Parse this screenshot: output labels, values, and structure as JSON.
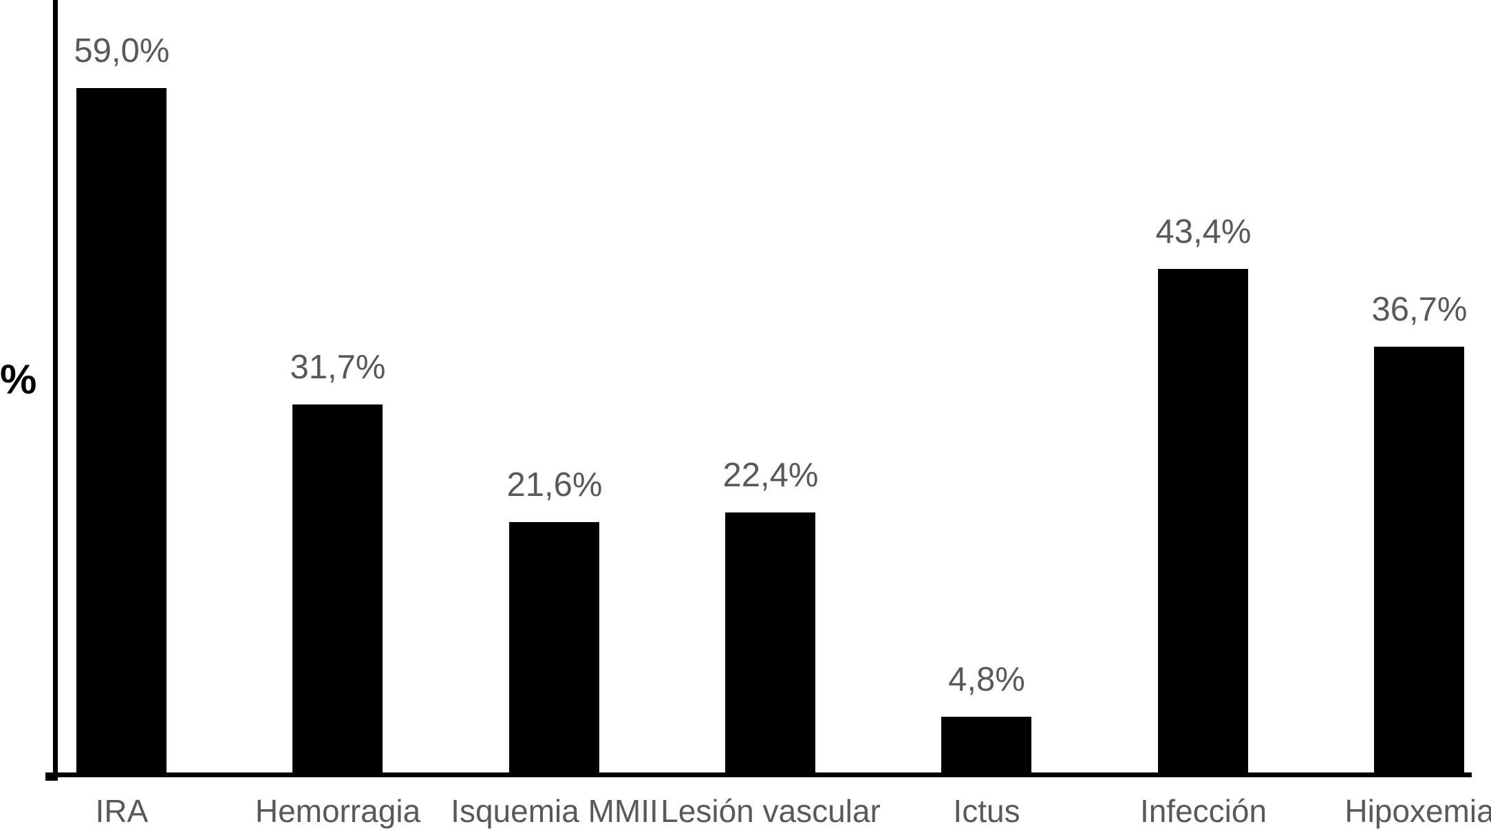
{
  "chart_data": {
    "type": "bar",
    "title": "",
    "ylabel": "%",
    "xlabel": "",
    "categories": [
      "IRA",
      "Hemorragia",
      "Isquemia MMII",
      "Lesión vascular",
      "Ictus",
      "Infección",
      "Hipoxemia"
    ],
    "values": [
      59.0,
      31.7,
      21.6,
      22.4,
      4.8,
      43.4,
      36.7
    ],
    "value_labels": [
      "59,0%",
      "31,7%",
      "21,6%",
      "22,4%",
      "4,8%",
      "43,4%",
      "36,7%"
    ],
    "series_name": "",
    "ylim": [
      0,
      67
    ],
    "grid": false,
    "legend_position": "none",
    "bar_color": "#000000",
    "data_label_color": "#595959",
    "category_label_color": "#595959",
    "axis_color": "#000000"
  }
}
